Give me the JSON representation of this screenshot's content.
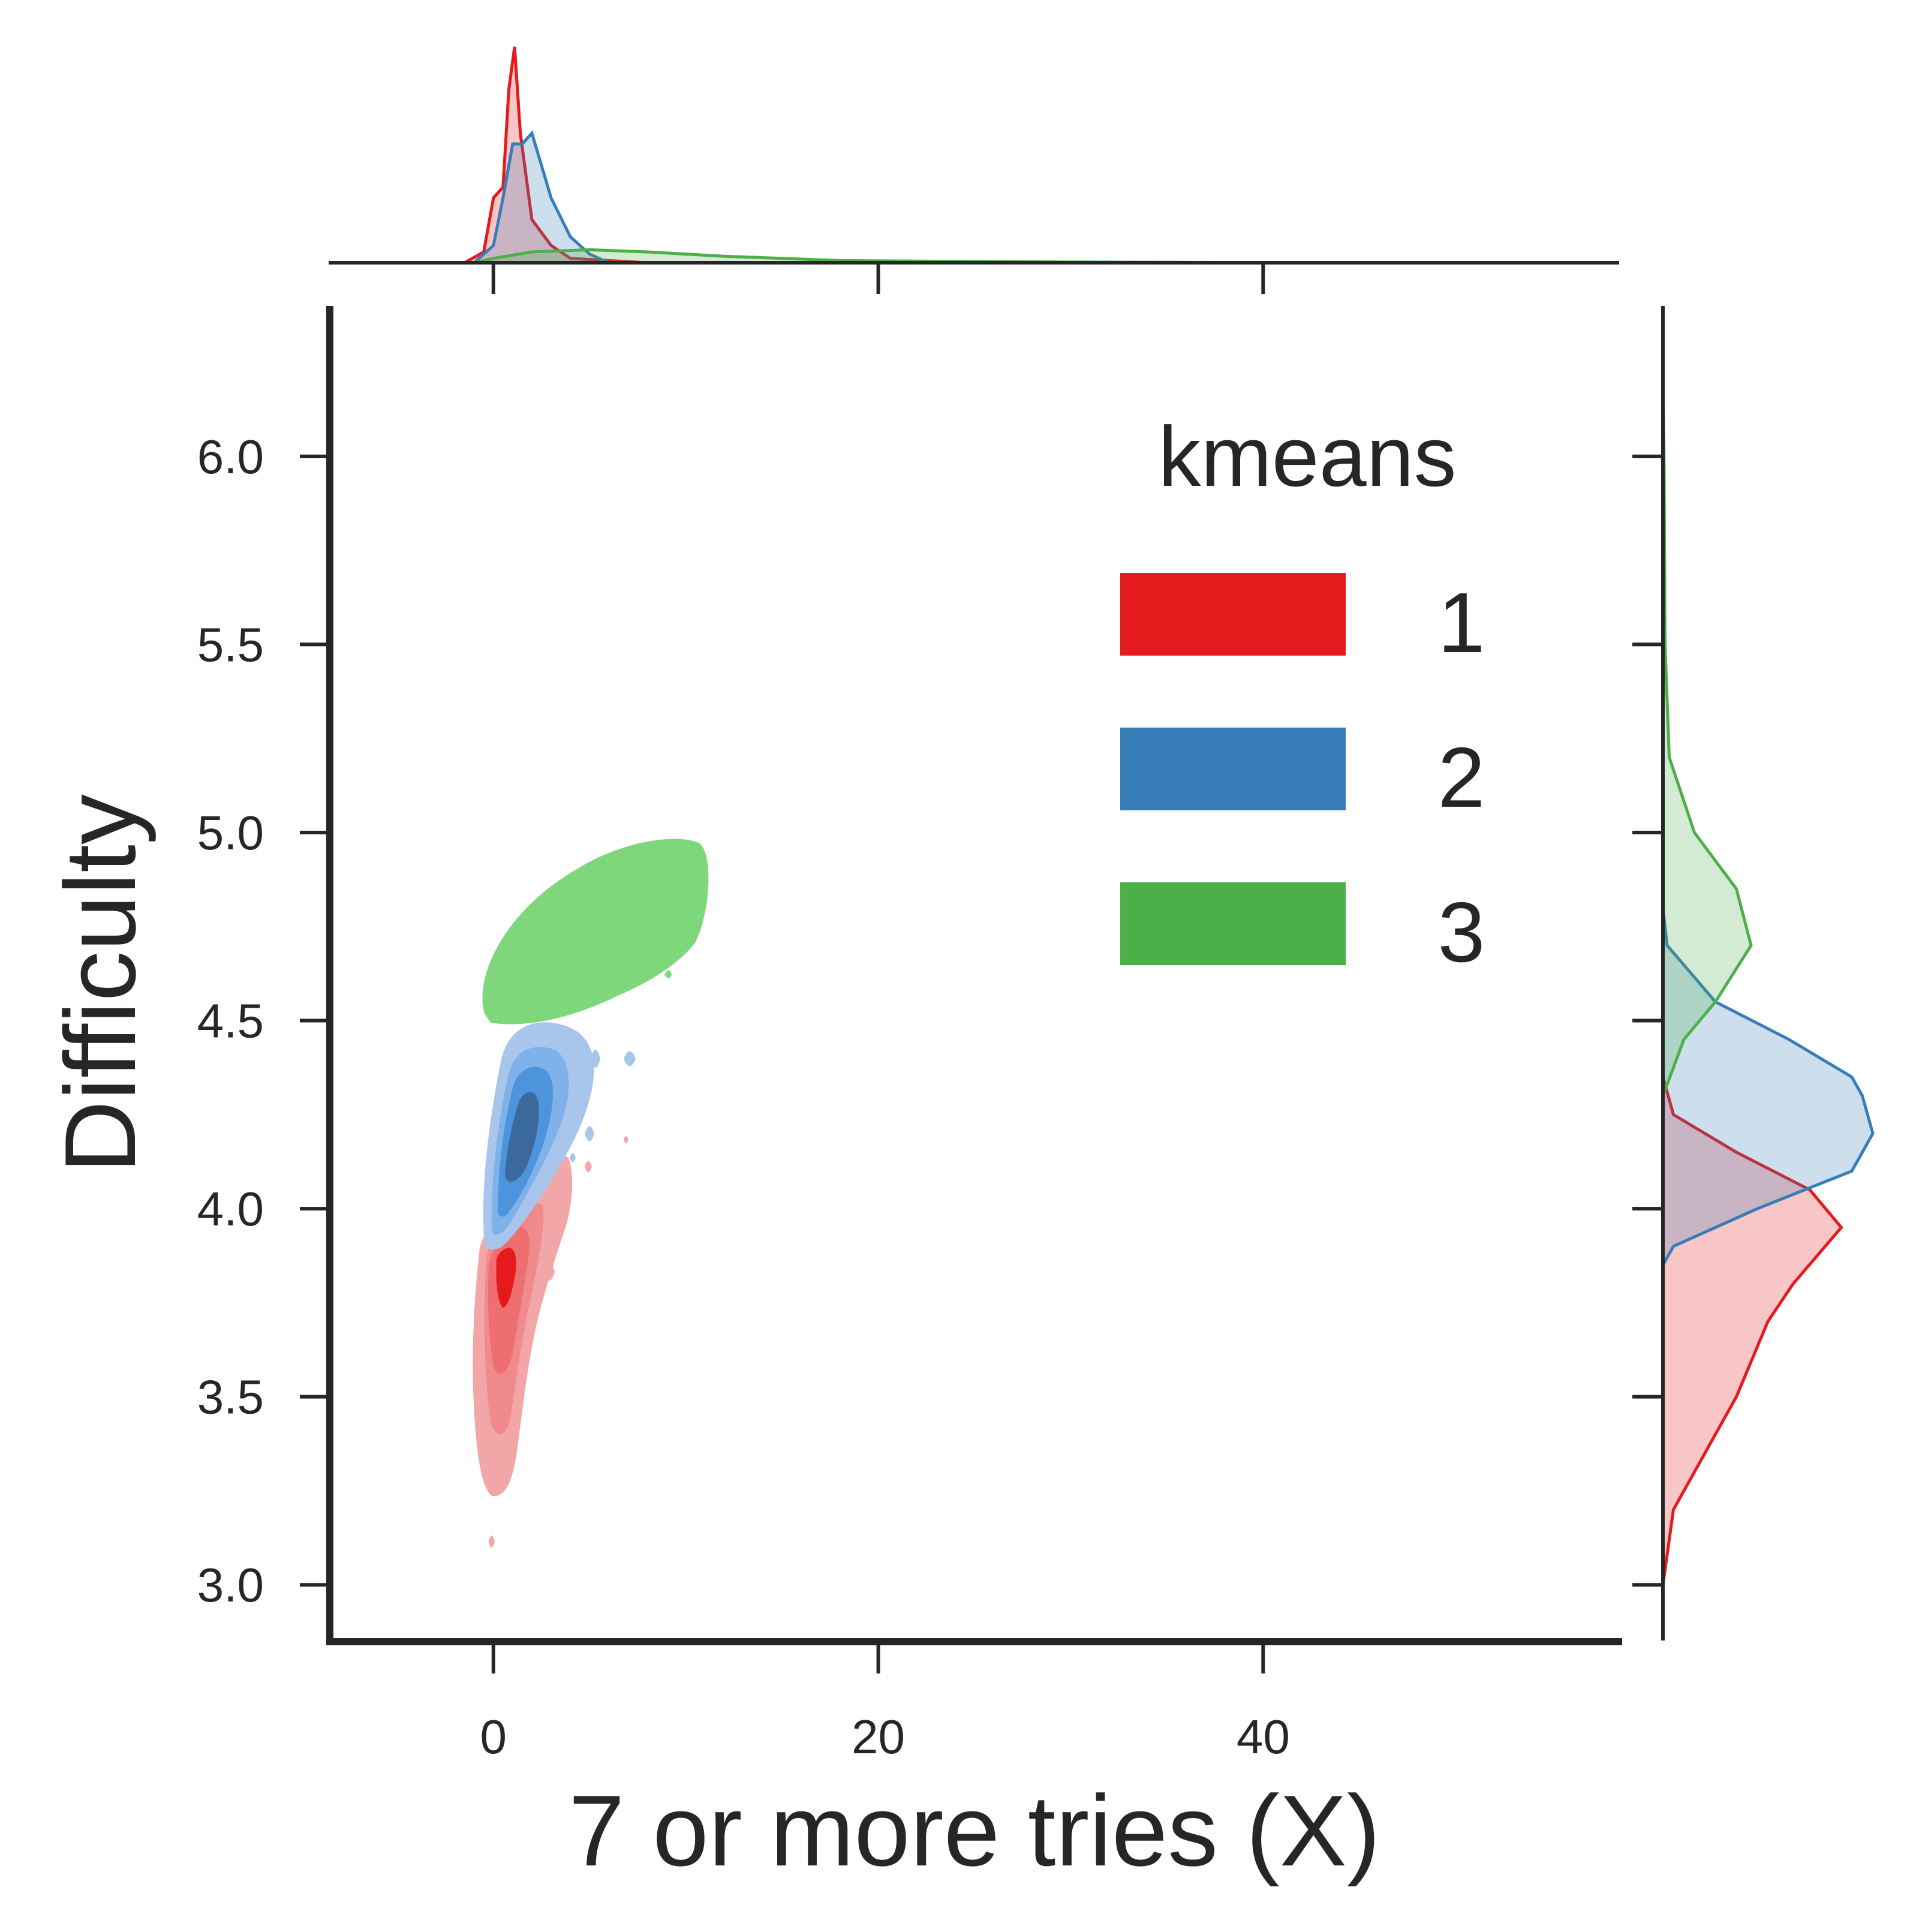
{
  "chart_data": {
    "type": "kde-joint",
    "xlabel": "7 or more tries (X)",
    "ylabel": "Difficulty",
    "xlim": [
      -8.5,
      58.5
    ],
    "ylim": [
      2.86,
      6.4
    ],
    "x_ticks": [
      0,
      20,
      40
    ],
    "x_tick_labels": [
      "0",
      "20",
      "40"
    ],
    "y_ticks": [
      3.0,
      3.5,
      4.0,
      4.5,
      5.0,
      5.5,
      6.0
    ],
    "y_tick_labels": [
      "3.0",
      "3.5",
      "4.0",
      "4.5",
      "5.0",
      "5.5",
      "6.0"
    ],
    "grid": false,
    "legend": {
      "title": "kmeans",
      "placement": "top-right",
      "entries": [
        {
          "label": "1",
          "color": "#e41a1c"
        },
        {
          "label": "2",
          "color": "#377eb8"
        },
        {
          "label": "3",
          "color": "#4daf4a"
        }
      ]
    },
    "series": [
      {
        "name": "1",
        "color": "#e41a1c",
        "fill_light": "#f3a6a8",
        "fill_mid": "#ee6f72",
        "fill_dark": "#e41a1c",
        "approx_center": {
          "x": 1.0,
          "y": 3.85
        },
        "approx_extent": {
          "x": [
            -0.8,
            3.2
          ],
          "y": [
            3.25,
            4.2
          ]
        },
        "x_marginal": [
          [
            -1.5,
            0
          ],
          [
            -0.5,
            0.05
          ],
          [
            0,
            0.3
          ],
          [
            0.5,
            0.35
          ],
          [
            0.8,
            0.8
          ],
          [
            1.1,
            1.0
          ],
          [
            1.4,
            0.6
          ],
          [
            2,
            0.2
          ],
          [
            3,
            0.08
          ],
          [
            4,
            0.02
          ],
          [
            6,
            0.01
          ],
          [
            8,
            0.0
          ]
        ],
        "y_marginal": [
          [
            3.0,
            0
          ],
          [
            3.2,
            0.05
          ],
          [
            3.3,
            0.15
          ],
          [
            3.5,
            0.35
          ],
          [
            3.7,
            0.5
          ],
          [
            3.8,
            0.62
          ],
          [
            3.95,
            0.85
          ],
          [
            4.05,
            0.7
          ],
          [
            4.15,
            0.35
          ],
          [
            4.25,
            0.05
          ],
          [
            4.35,
            0.0
          ]
        ]
      },
      {
        "name": "2",
        "color": "#377eb8",
        "fill_light": "#a8c6ec",
        "fill_mid": "#5b9de0",
        "fill_dark": "#3c6a9c",
        "approx_center": {
          "x": 1.5,
          "y": 4.2
        },
        "approx_extent": {
          "x": [
            -0.2,
            5.0
          ],
          "y": [
            3.9,
            4.5
          ]
        },
        "x_marginal": [
          [
            -1,
            0
          ],
          [
            0,
            0.08
          ],
          [
            0.5,
            0.3
          ],
          [
            1,
            0.55
          ],
          [
            1.5,
            0.55
          ],
          [
            2,
            0.6
          ],
          [
            2.5,
            0.45
          ],
          [
            3,
            0.3
          ],
          [
            4,
            0.12
          ],
          [
            5,
            0.04
          ],
          [
            6,
            0.0
          ]
        ],
        "y_marginal": [
          [
            3.85,
            0
          ],
          [
            3.9,
            0.05
          ],
          [
            4.0,
            0.45
          ],
          [
            4.1,
            0.9
          ],
          [
            4.2,
            1.0
          ],
          [
            4.3,
            0.95
          ],
          [
            4.35,
            0.9
          ],
          [
            4.45,
            0.6
          ],
          [
            4.55,
            0.25
          ],
          [
            4.7,
            0.02
          ],
          [
            4.8,
            0.0
          ]
        ]
      },
      {
        "name": "3",
        "color": "#4daf4a",
        "fill_light": "#7ed87b",
        "approx_center": {
          "x": 5.0,
          "y": 4.75
        },
        "approx_extent": {
          "x": [
            -0.5,
            11
          ],
          "y": [
            4.5,
            5.0
          ]
        },
        "x_marginal": [
          [
            -1,
            0
          ],
          [
            0,
            0.02
          ],
          [
            2,
            0.05
          ],
          [
            5,
            0.06
          ],
          [
            8,
            0.05
          ],
          [
            12,
            0.03
          ],
          [
            18,
            0.01
          ],
          [
            30,
            0.003
          ],
          [
            45,
            0.0
          ]
        ],
        "y_marginal": [
          [
            4.3,
            0
          ],
          [
            4.45,
            0.1
          ],
          [
            4.55,
            0.25
          ],
          [
            4.7,
            0.42
          ],
          [
            4.85,
            0.35
          ],
          [
            5.0,
            0.15
          ],
          [
            5.2,
            0.03
          ],
          [
            5.5,
            0.01
          ],
          [
            6.0,
            0.005
          ],
          [
            6.2,
            0.0
          ]
        ]
      }
    ]
  }
}
